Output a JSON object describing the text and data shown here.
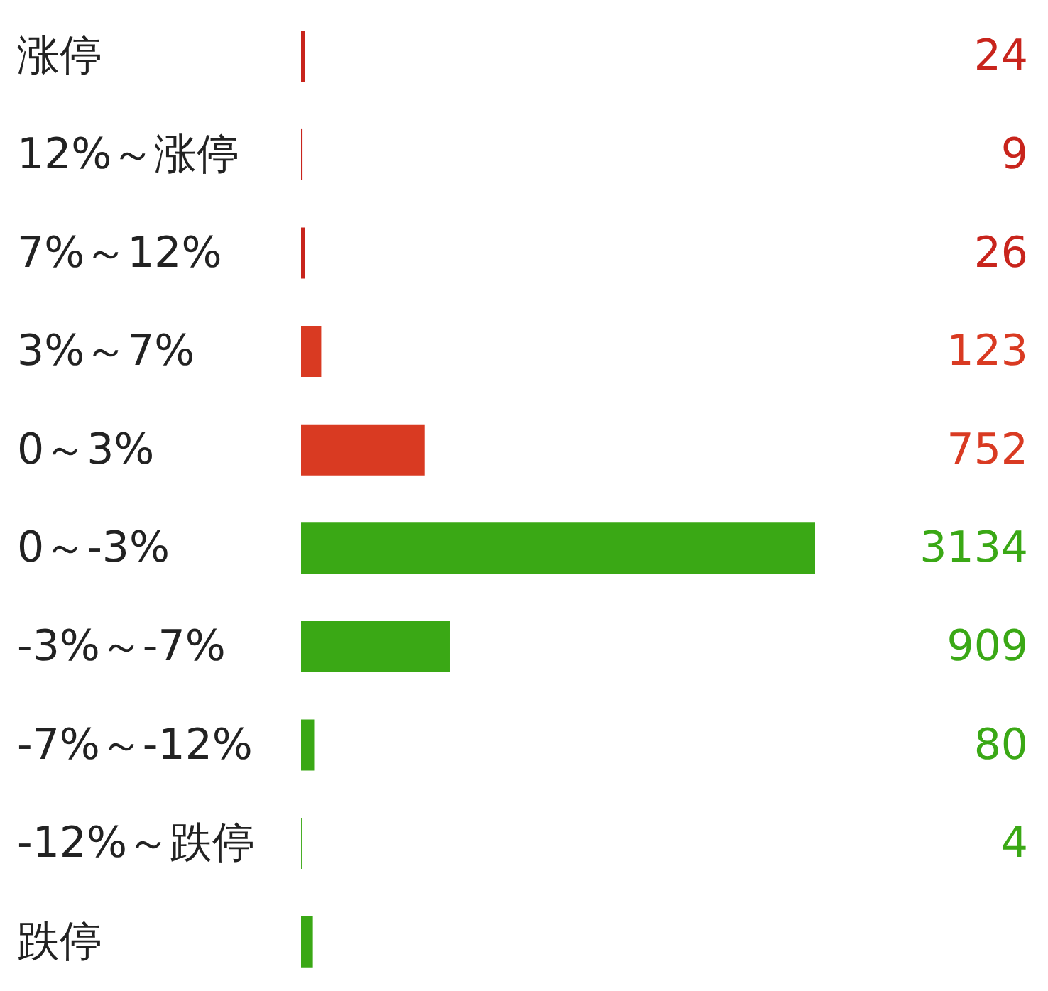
{
  "chart_data": {
    "type": "bar",
    "orientation": "horizontal",
    "categories": [
      "涨停",
      "12%～涨停",
      "7%～12%",
      "3%～7%",
      "0～3%",
      "0～-3%",
      "-3%～-7%",
      "-7%～-12%",
      "-12%～跌停",
      "跌停"
    ],
    "values": [
      24,
      9,
      26,
      123,
      752,
      3134,
      909,
      80,
      4,
      72
    ],
    "colors": [
      "#c8241c",
      "#c8241c",
      "#c8241c",
      "#d93a22",
      "#d93a22",
      "#3aa815",
      "#3aa815",
      "#3aa815",
      "#3aa815",
      "#3aa815"
    ],
    "value_labels": [
      "24",
      "9",
      "26",
      "123",
      "752",
      "3134",
      "909",
      "80",
      "4",
      null
    ]
  }
}
